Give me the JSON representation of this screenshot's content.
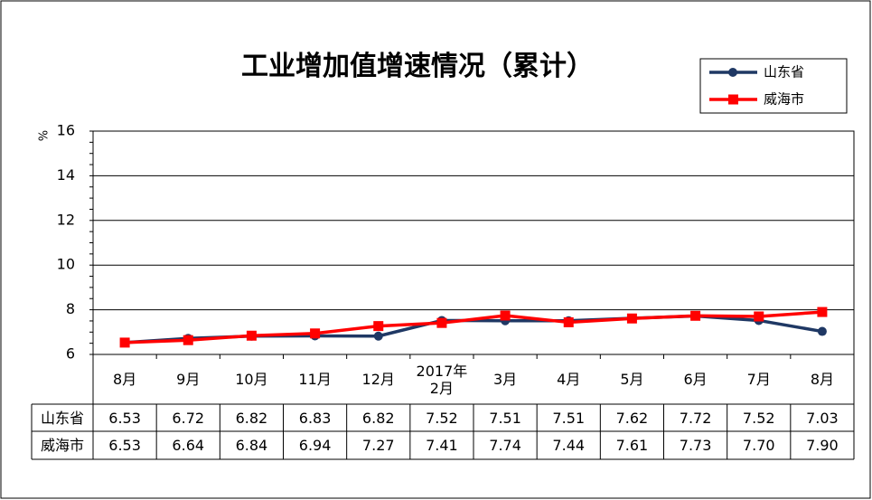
{
  "chart_data": {
    "type": "line",
    "title": "工业增加值增速情况（累计）",
    "y_label": "%",
    "categories": [
      "8月",
      "9月",
      "10月",
      "11月",
      "12月",
      "2017年\n2月",
      "3月",
      "4月",
      "5月",
      "6月",
      "7月",
      "8月"
    ],
    "series": [
      {
        "name": "山东省",
        "color": "#1f3864",
        "marker": "circle",
        "values": [
          6.53,
          6.72,
          6.82,
          6.83,
          6.82,
          7.52,
          7.51,
          7.51,
          7.62,
          7.72,
          7.52,
          7.03
        ],
        "value_labels": [
          "6.53",
          "6.72",
          "6.82",
          "6.83",
          "6.82",
          "7.52",
          "7.51",
          "7.51",
          "7.62",
          "7.72",
          "7.52",
          "7.03"
        ]
      },
      {
        "name": "威海市",
        "color": "#ff0000",
        "marker": "square",
        "values": [
          6.53,
          6.64,
          6.84,
          6.94,
          7.27,
          7.41,
          7.74,
          7.44,
          7.61,
          7.73,
          7.7,
          7.9
        ],
        "value_labels": [
          "6.53",
          "6.64",
          "6.84",
          "6.94",
          "7.27",
          "7.41",
          "7.74",
          "7.44",
          "7.61",
          "7.73",
          "7.70",
          "7.90"
        ]
      }
    ],
    "ylim": [
      6,
      16
    ],
    "yticks": [
      6,
      8,
      10,
      12,
      14,
      16
    ],
    "grid": true,
    "legend": "top-right"
  }
}
